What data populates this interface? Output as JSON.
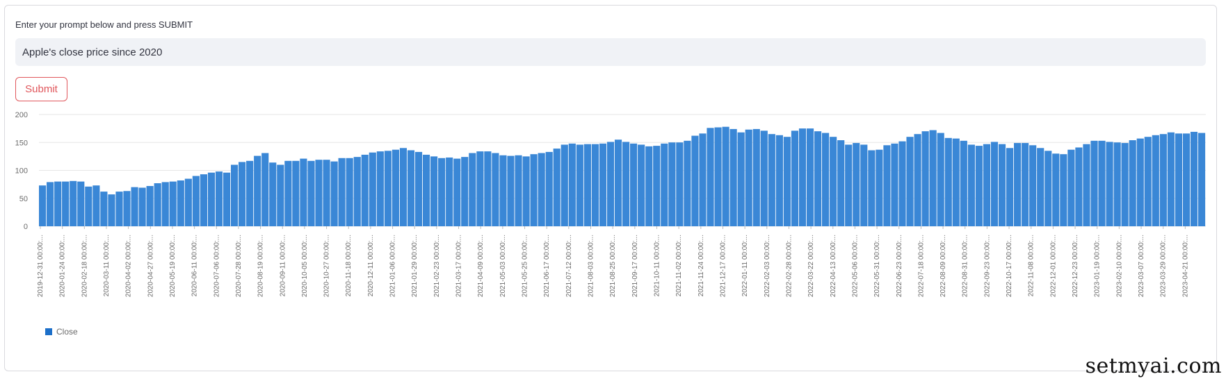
{
  "prompt": {
    "label": "Enter your prompt below and press SUBMIT",
    "value": "Apple's close price since 2020"
  },
  "submit_label": "Submit",
  "watermark": "setmyai.com",
  "chart_data": {
    "type": "bar",
    "title": "",
    "xlabel": "",
    "ylabel": "",
    "ylim": [
      0,
      200
    ],
    "yticks": [
      0,
      50,
      100,
      150,
      200
    ],
    "grid": true,
    "legend_position": "bottom-left",
    "color": "#3a87d6",
    "x_tick_labels": [
      "2019-12-31 00:00:...",
      "2020-01-24 00:00:...",
      "2020-02-18 00:00:...",
      "2020-03-11 00:00:...",
      "2020-04-02 00:00:...",
      "2020-04-27 00:00:...",
      "2020-05-19 00:00:...",
      "2020-06-11 00:00:...",
      "2020-07-06 00:00:...",
      "2020-07-28 00:00:...",
      "2020-08-19 00:00:...",
      "2020-09-11 00:00:...",
      "2020-10-05 00:00:...",
      "2020-10-27 00:00:...",
      "2020-11-18 00:00:...",
      "2020-12-11 00:00:...",
      "2021-01-06 00:00:...",
      "2021-01-29 00:00:...",
      "2021-02-23 00:00:...",
      "2021-03-17 00:00:...",
      "2021-04-09 00:00:...",
      "2021-05-03 00:00:...",
      "2021-05-25 00:00:...",
      "2021-06-17 00:00:...",
      "2021-07-12 00:00:...",
      "2021-08-03 00:00:...",
      "2021-08-25 00:00:...",
      "2021-09-17 00:00:...",
      "2021-10-11 00:00:...",
      "2021-11-02 00:00:...",
      "2021-11-24 00:00:...",
      "2021-12-17 00:00:...",
      "2022-01-11 00:00:...",
      "2022-02-03 00:00:...",
      "2022-02-28 00:00:...",
      "2022-03-22 00:00:...",
      "2022-04-13 00:00:...",
      "2022-05-06 00:00:...",
      "2022-05-31 00:00:...",
      "2022-06-23 00:00:...",
      "2022-07-18 00:00:...",
      "2022-08-09 00:00:...",
      "2022-08-31 00:00:...",
      "2022-09-23 00:00:...",
      "2022-10-17 00:00:...",
      "2022-11-08 00:00:...",
      "2022-12-01 00:00:...",
      "2022-12-23 00:00:...",
      "2023-01-19 00:00:...",
      "2023-02-10 00:00:...",
      "2023-03-07 00:00:...",
      "2023-03-29 00:00:...",
      "2023-04-21 00:00:..."
    ],
    "series": [
      {
        "name": "Close",
        "values": [
          73,
          79,
          80,
          80,
          81,
          80,
          71,
          73,
          62,
          57,
          62,
          63,
          70,
          69,
          72,
          77,
          79,
          80,
          82,
          85,
          90,
          93,
          96,
          98,
          96,
          110,
          115,
          117,
          126,
          131,
          114,
          110,
          117,
          117,
          121,
          117,
          119,
          119,
          116,
          122,
          122,
          124,
          128,
          132,
          134,
          135,
          137,
          140,
          136,
          133,
          128,
          125,
          122,
          123,
          121,
          124,
          131,
          134,
          134,
          131,
          127,
          126,
          127,
          125,
          129,
          131,
          133,
          139,
          146,
          148,
          146,
          147,
          147,
          148,
          151,
          155,
          151,
          148,
          146,
          143,
          144,
          148,
          150,
          150,
          153,
          162,
          166,
          176,
          177,
          178,
          174,
          168,
          173,
          174,
          171,
          165,
          163,
          160,
          171,
          175,
          175,
          170,
          167,
          160,
          154,
          146,
          149,
          146,
          136,
          137,
          145,
          148,
          152,
          160,
          165,
          170,
          172,
          167,
          158,
          157,
          153,
          146,
          144,
          147,
          151,
          147,
          140,
          149,
          149,
          145,
          140,
          135,
          130,
          129,
          137,
          141,
          147,
          153,
          153,
          151,
          150,
          149,
          154,
          157,
          160,
          163,
          165,
          168,
          166,
          166,
          169,
          167
        ]
      }
    ]
  }
}
